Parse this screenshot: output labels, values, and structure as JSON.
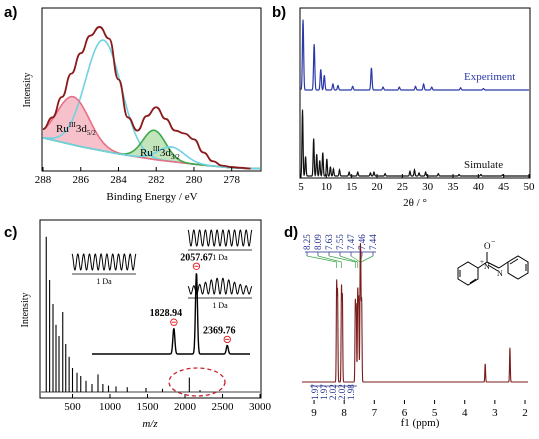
{
  "figure": {
    "panel_letters": [
      "a)",
      "b)",
      "c)",
      "d)"
    ]
  },
  "chart_data": [
    {
      "panel": "a)",
      "type": "line",
      "xlabel": "Binding Energy / eV",
      "ylabel": "Intensity",
      "x_ticks": [
        288,
        286,
        284,
        282,
        280,
        278
      ],
      "xlim": [
        288,
        276.5
      ],
      "x_reversed": true,
      "annotations": [
        {
          "base": "Ru",
          "sup": "III",
          "rest": "3d",
          "sub": "5/2"
        },
        {
          "base": "Ru",
          "sup": "III",
          "rest": "3d",
          "sub": "3/2"
        }
      ],
      "series": [
        {
          "role": "measured envelope",
          "color": "#8b1a1a",
          "x": [
            288.0,
            287.5,
            287.0,
            286.5,
            286.0,
            285.5,
            285.0,
            284.5,
            284.0,
            283.5,
            283.0,
            282.5,
            282.0,
            281.5,
            281.0,
            280.5,
            280.0,
            279.5,
            279.0,
            278.5,
            278.0,
            277.5,
            277.0
          ],
          "y": [
            0.28,
            0.36,
            0.5,
            0.66,
            0.8,
            0.92,
            0.98,
            0.9,
            0.62,
            0.36,
            0.27,
            0.37,
            0.43,
            0.35,
            0.27,
            0.25,
            0.21,
            0.12,
            0.06,
            0.03,
            0.02,
            0.015,
            0.01
          ]
        },
        {
          "role": "C 1s component",
          "color": "#6fd3e3",
          "center": 284.8,
          "height": 0.76,
          "width": 0.95
        },
        {
          "role": "RuIII 3d5/2 component",
          "color": "#e86f86",
          "fill": "#f5b6c2",
          "center": 286.4,
          "height": 0.33,
          "width": 0.85
        },
        {
          "role": "RuIII 3d3/2 component",
          "color": "#3fa84a",
          "fill": "#b7e0b0",
          "center": 282.1,
          "height": 0.2,
          "width": 0.6
        },
        {
          "role": "secondary component",
          "color": "#6fd3e3",
          "center": 281.2,
          "height": 0.1,
          "width": 0.7
        },
        {
          "role": "background",
          "color": "#4aa84a",
          "x": [
            288.0,
            286.0,
            284.0,
            282.0,
            280.0,
            278.0,
            277.0
          ],
          "y": [
            0.22,
            0.16,
            0.11,
            0.07,
            0.04,
            0.015,
            0.01
          ]
        }
      ]
    },
    {
      "panel": "b)",
      "type": "line",
      "xlabel": "2θ / °",
      "x_ticks": [
        5,
        10,
        15,
        20,
        25,
        30,
        35,
        40,
        45,
        50
      ],
      "xlim": [
        5,
        50
      ],
      "series": [
        {
          "name": "Experiment",
          "color": "#2a38a8",
          "peaks": [
            [
              5.4,
              0.95
            ],
            [
              7.6,
              0.62
            ],
            [
              8.9,
              0.28
            ],
            [
              9.6,
              0.2
            ],
            [
              11.3,
              0.08
            ],
            [
              12.3,
              0.06
            ],
            [
              15.2,
              0.05
            ],
            [
              18.9,
              0.3
            ],
            [
              21.2,
              0.04
            ],
            [
              24.4,
              0.04
            ],
            [
              27.6,
              0.05
            ],
            [
              29.2,
              0.08
            ],
            [
              30.8,
              0.04
            ],
            [
              36.5,
              0.03
            ],
            [
              41.0,
              0.02
            ]
          ]
        },
        {
          "name": "Simulate",
          "color": "#111111",
          "peaks": [
            [
              5.3,
              0.85
            ],
            [
              5.9,
              0.25
            ],
            [
              7.5,
              0.48
            ],
            [
              8.1,
              0.28
            ],
            [
              8.7,
              0.2
            ],
            [
              9.3,
              0.3
            ],
            [
              10.1,
              0.22
            ],
            [
              10.8,
              0.12
            ],
            [
              11.4,
              0.09
            ],
            [
              12.6,
              0.08
            ],
            [
              14.5,
              0.05
            ],
            [
              16.2,
              0.05
            ],
            [
              18.7,
              0.04
            ],
            [
              19.4,
              0.05
            ],
            [
              21.6,
              0.03
            ],
            [
              26.5,
              0.06
            ],
            [
              27.4,
              0.08
            ],
            [
              28.3,
              0.04
            ],
            [
              29.6,
              0.05
            ],
            [
              32.1,
              0.03
            ],
            [
              36.2,
              0.02
            ],
            [
              40.5,
              0.02
            ],
            [
              44.8,
              0.015
            ]
          ]
        }
      ]
    },
    {
      "panel": "c)",
      "type": "line",
      "xlabel": "m/z",
      "ylabel": "Intensity",
      "x_ticks": [
        500,
        1000,
        1500,
        2000,
        2500,
        3000
      ],
      "xlim": [
        80,
        3000
      ],
      "series": [
        {
          "role": "mass spectrum",
          "color": "#000000",
          "peaks": [
            [
              150,
              0.97
            ],
            [
              195,
              0.7
            ],
            [
              240,
              0.55
            ],
            [
              280,
              0.42
            ],
            [
              320,
              0.35
            ],
            [
              370,
              0.5
            ],
            [
              410,
              0.3
            ],
            [
              455,
              0.22
            ],
            [
              500,
              0.15
            ],
            [
              560,
              0.12
            ],
            [
              610,
              0.1
            ],
            [
              680,
              0.07
            ],
            [
              760,
              0.05
            ],
            [
              840,
              0.11
            ],
            [
              905,
              0.05
            ],
            [
              980,
              0.04
            ],
            [
              1080,
              0.035
            ],
            [
              1230,
              0.03
            ],
            [
              1480,
              0.025
            ],
            [
              1700,
              0.02
            ],
            [
              2057.67,
              0.09
            ],
            [
              2200,
              0.012
            ]
          ]
        }
      ],
      "inset": {
        "type": "line",
        "x_ticks": [],
        "xlim": [
          1000,
          2600
        ],
        "peaks": [
          {
            "x": 1828.94,
            "label": "1828.94",
            "height": 0.3
          },
          {
            "x": 2057.67,
            "label": "2057.67",
            "height": 0.95
          },
          {
            "x": 2369.76,
            "label": "2369.76",
            "height": 0.1
          }
        ],
        "marker_color": "#e0282c",
        "isotope_boxes": [
          {
            "label": "1 Da",
            "peaks": 11,
            "modulated": false
          },
          {
            "label": "1 Da",
            "peaks": 11,
            "modulated": false
          },
          {
            "label": "1 Da",
            "peaks": 11,
            "modulated": true
          }
        ]
      },
      "highlight_ellipse": {
        "color": "#c8202a",
        "style": "dashed"
      }
    },
    {
      "panel": "d)",
      "type": "line",
      "xlabel": "f1 (ppm)",
      "x_ticks": [
        9,
        8,
        7,
        6,
        5,
        4,
        3,
        2
      ],
      "xlim": [
        9.4,
        1.9
      ],
      "x_reversed": true,
      "shift_labels": [
        "8.25",
        "8.09",
        "7.63",
        "7.55",
        "7.47",
        "7.46",
        "7.44"
      ],
      "shift_label_color": "#1f2e8a",
      "integrals": [
        "1.97",
        "1.97",
        "2.02",
        "2.02",
        "1.98"
      ],
      "integral_label_color": "#1f2e8a",
      "series": [
        {
          "role": "1H NMR spectrum",
          "color": "#7a1b1b",
          "peaks": [
            [
              8.25,
              0.86
            ],
            [
              8.22,
              0.78
            ],
            [
              8.09,
              0.82
            ],
            [
              8.06,
              0.74
            ],
            [
              7.63,
              0.7
            ],
            [
              7.6,
              0.66
            ],
            [
              7.55,
              0.8
            ],
            [
              7.52,
              0.72
            ],
            [
              7.47,
              0.88
            ],
            [
              7.45,
              0.84
            ],
            [
              7.42,
              0.7
            ],
            [
              3.32,
              0.16
            ],
            [
              2.5,
              0.3
            ]
          ]
        }
      ],
      "structure": {
        "labels": [
          "O",
          "−",
          "+",
          "N",
          "N"
        ]
      }
    }
  ]
}
